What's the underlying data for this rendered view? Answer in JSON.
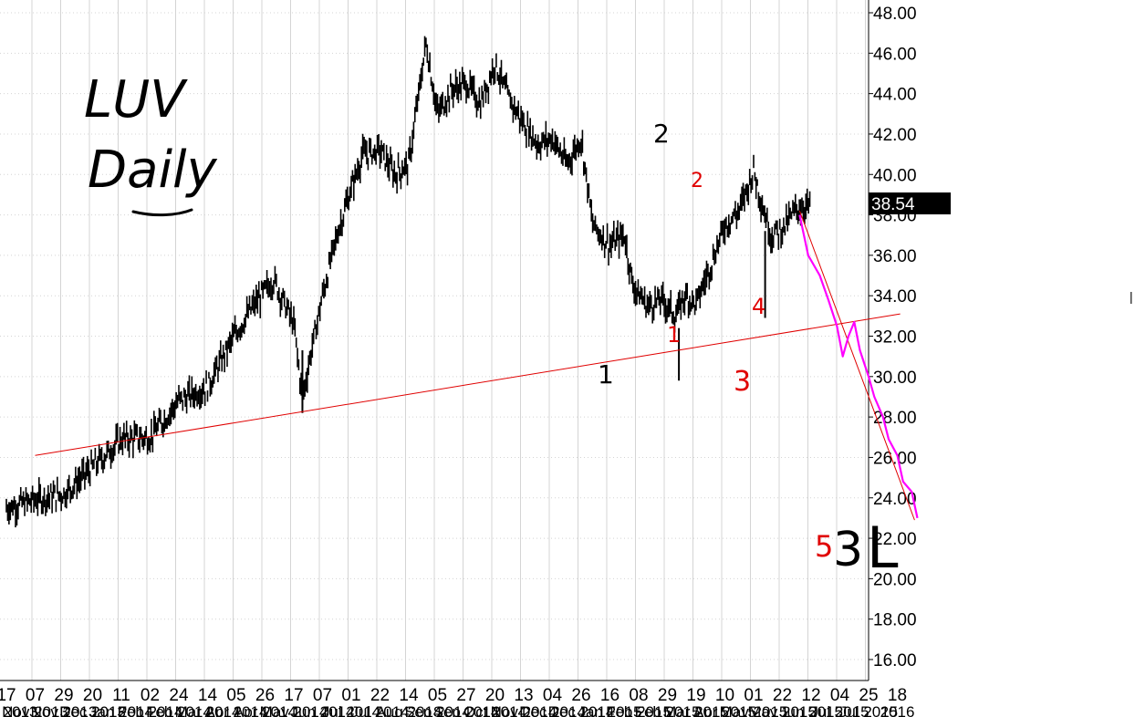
{
  "chart_data": {
    "type": "ohlc",
    "title": "",
    "xlabel": "",
    "ylabel": "",
    "ylim": [
      15,
      49
    ],
    "grid": true,
    "y_ticks": [
      "16.00",
      "18.00",
      "20.00",
      "22.00",
      "24.00",
      "26.00",
      "28.00",
      "30.00",
      "32.00",
      "34.00",
      "36.00",
      "38.00",
      "40.00",
      "42.00",
      "44.00",
      "46.00",
      "48.00"
    ],
    "x_day_labels": [
      "17",
      "07",
      "29",
      "20",
      "11",
      "02",
      "24",
      "14",
      "05",
      "26",
      "17",
      "07",
      "01",
      "22",
      "14",
      "05",
      "27",
      "20",
      "13",
      "04",
      "26",
      "16",
      "08",
      "29",
      "19",
      "10",
      "01",
      "22",
      "12",
      "04",
      "25",
      "18"
    ],
    "x_date_labels": [
      "Oct 2013",
      "Nov 2013",
      "Nov 2013",
      "Dec 2013",
      "Jan 2014",
      "Feb 2014",
      "Feb 2014",
      "Mar 2014",
      "Apr 2014",
      "Apr 2014",
      "May 2014",
      "Jun 2014",
      "Jul 2014",
      "Jul 2014",
      "Aug 2014",
      "Sep 2014",
      "Sep 2014",
      "Oct 2014",
      "Nov 2014",
      "Dec 2014",
      "Dec 2014",
      "Jan 2015",
      "Feb 2015",
      "Feb 2015",
      "Mar 2015",
      "Apr 2015",
      "May 2015",
      "May 2015",
      "Jun 2015",
      "Jul 2015",
      "Jul 2015",
      "2016"
    ],
    "last_price": "38.54",
    "price_path": [
      {
        "x": 0,
        "y": 23.5
      },
      {
        "x": 1,
        "y": 23.9
      },
      {
        "x": 2,
        "y": 24.2
      },
      {
        "x": 3,
        "y": 25.5
      },
      {
        "x": 4,
        "y": 26.9
      },
      {
        "x": 5,
        "y": 27.0
      },
      {
        "x": 6,
        "y": 28.8
      },
      {
        "x": 7,
        "y": 29.5
      },
      {
        "x": 8,
        "y": 32.2
      },
      {
        "x": 8.6,
        "y": 33.5
      },
      {
        "x": 9.3,
        "y": 34.8
      },
      {
        "x": 10,
        "y": 32.6
      },
      {
        "x": 10.3,
        "y": 28.9
      },
      {
        "x": 10.6,
        "y": 31.2
      },
      {
        "x": 11,
        "y": 34.0
      },
      {
        "x": 11.5,
        "y": 37.0
      },
      {
        "x": 12,
        "y": 39.3
      },
      {
        "x": 12.4,
        "y": 41.0
      },
      {
        "x": 13,
        "y": 41.2
      },
      {
        "x": 13.5,
        "y": 40.0
      },
      {
        "x": 14,
        "y": 40.5
      },
      {
        "x": 14.3,
        "y": 43.5
      },
      {
        "x": 14.6,
        "y": 46.5
      },
      {
        "x": 15,
        "y": 43.0
      },
      {
        "x": 15.5,
        "y": 44.2
      },
      {
        "x": 16,
        "y": 44.5
      },
      {
        "x": 16.5,
        "y": 43.5
      },
      {
        "x": 17,
        "y": 45.5
      },
      {
        "x": 17.4,
        "y": 44.0
      },
      {
        "x": 18,
        "y": 42.5
      },
      {
        "x": 18.5,
        "y": 41.5
      },
      {
        "x": 19,
        "y": 41.8
      },
      {
        "x": 19.5,
        "y": 40.5
      },
      {
        "x": 20,
        "y": 41.8
      },
      {
        "x": 20.4,
        "y": 37.5
      },
      {
        "x": 21,
        "y": 36.5
      },
      {
        "x": 21.5,
        "y": 37.0
      },
      {
        "x": 21.8,
        "y": 34.5
      },
      {
        "x": 22.3,
        "y": 33.5
      },
      {
        "x": 22.8,
        "y": 33.8
      },
      {
        "x": 23.3,
        "y": 33.0
      },
      {
        "x": 23.6,
        "y": 34.0
      },
      {
        "x": 24,
        "y": 33.6
      },
      {
        "x": 24.5,
        "y": 35.5
      },
      {
        "x": 25,
        "y": 37.5
      },
      {
        "x": 25.5,
        "y": 38.2
      },
      {
        "x": 26,
        "y": 40.2
      },
      {
        "x": 26.3,
        "y": 38.5
      },
      {
        "x": 26.6,
        "y": 37.0
      },
      {
        "x": 27,
        "y": 37.3
      },
      {
        "x": 27.5,
        "y": 38.3
      },
      {
        "x": 28,
        "y": 38.5
      }
    ],
    "annotations": [
      {
        "name": "support-trendline",
        "type": "line",
        "color": "#e00000",
        "from": {
          "x": 1,
          "y": 26.1
        },
        "to": {
          "x": 31.1,
          "y": 33.1
        }
      },
      {
        "name": "channel-line",
        "type": "line",
        "color": "#e00000",
        "from": {
          "x": 27.6,
          "y": 38.2
        },
        "to": {
          "x": 31.6,
          "y": 22.9
        }
      },
      {
        "name": "projected-path",
        "type": "line",
        "color": "#ff00ff",
        "points": [
          {
            "x": 27.6,
            "y": 38.0
          },
          {
            "x": 27.9,
            "y": 36.0
          },
          {
            "x": 28.3,
            "y": 35.0
          },
          {
            "x": 28.6,
            "y": 33.8
          },
          {
            "x": 28.9,
            "y": 32.5
          },
          {
            "x": 29.1,
            "y": 31.0
          },
          {
            "x": 29.3,
            "y": 32.0
          },
          {
            "x": 29.5,
            "y": 32.7
          },
          {
            "x": 29.7,
            "y": 31.3
          },
          {
            "x": 30.0,
            "y": 30.0
          },
          {
            "x": 30.2,
            "y": 29.0
          },
          {
            "x": 30.5,
            "y": 28.0
          },
          {
            "x": 30.7,
            "y": 26.9
          },
          {
            "x": 31.0,
            "y": 26.1
          },
          {
            "x": 31.2,
            "y": 24.8
          },
          {
            "x": 31.5,
            "y": 24.3
          },
          {
            "x": 31.7,
            "y": 23.0
          }
        ]
      }
    ],
    "handwriting": {
      "title_line1": "LUV",
      "title_line2": "Daily",
      "labels": [
        {
          "text": "1",
          "color": "#000000"
        },
        {
          "text": "1",
          "color": "#e00000"
        },
        {
          "text": "2",
          "color": "#000000"
        },
        {
          "text": "2",
          "color": "#e00000"
        },
        {
          "text": "3",
          "color": "#e00000"
        },
        {
          "text": "4",
          "color": "#e00000"
        },
        {
          "text": "5",
          "color": "#e00000"
        },
        {
          "text": "3",
          "color": "#000000"
        },
        {
          "text": "L",
          "color": "#000000"
        }
      ]
    }
  }
}
